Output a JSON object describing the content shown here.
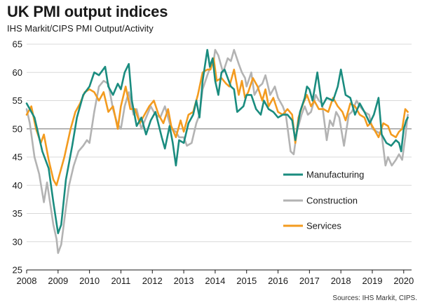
{
  "header": {
    "title": "UK PMI output indices",
    "subtitle": "IHS Markit/CIPS PMI Output/Activity"
  },
  "footer": {
    "source": "Sources: IHS Markit, CIPS."
  },
  "colors": {
    "manufacturing": "#1a8c7f",
    "construction": "#b3b3b3",
    "services": "#f39b1f",
    "reference": "#8c8c8c",
    "grid": "#d9d9d9"
  },
  "chart_data": {
    "type": "line",
    "title": "UK PMI output indices",
    "subtitle": "IHS Markit/CIPS PMI Output/Activity",
    "xlim": [
      2008.0,
      2020.25
    ],
    "ylim": [
      25,
      65
    ],
    "y_ticks": [
      25,
      30,
      35,
      40,
      45,
      50,
      55,
      60,
      65
    ],
    "x_ticks": [
      2008,
      2009,
      2010,
      2011,
      2012,
      2013,
      2014,
      2015,
      2016,
      2017,
      2018,
      2019,
      2020
    ],
    "x_tick_labels": [
      "2008",
      "2009",
      "2010",
      "2011",
      "2012",
      "2013",
      "2014",
      "2015",
      "2016",
      "2017",
      "2018",
      "2019",
      "2020"
    ],
    "grid": "horizontal",
    "reference_line": 50,
    "legend_position": "right",
    "series": [
      {
        "name": "Manufacturing",
        "points": [
          [
            2008.0,
            54.5
          ],
          [
            2008.25,
            52.0
          ],
          [
            2008.5,
            46.0
          ],
          [
            2008.7,
            43.0
          ],
          [
            2008.85,
            37.0
          ],
          [
            2009.0,
            31.5
          ],
          [
            2009.1,
            33.0
          ],
          [
            2009.25,
            41.0
          ],
          [
            2009.45,
            47.0
          ],
          [
            2009.6,
            52.0
          ],
          [
            2009.8,
            56.0
          ],
          [
            2010.0,
            57.5
          ],
          [
            2010.15,
            60.0
          ],
          [
            2010.3,
            59.5
          ],
          [
            2010.5,
            61.0
          ],
          [
            2010.6,
            57.5
          ],
          [
            2010.75,
            56.0
          ],
          [
            2010.9,
            58.0
          ],
          [
            2011.0,
            57.0
          ],
          [
            2011.12,
            60.0
          ],
          [
            2011.25,
            61.5
          ],
          [
            2011.35,
            55.0
          ],
          [
            2011.5,
            50.5
          ],
          [
            2011.65,
            52.0
          ],
          [
            2011.8,
            49.0
          ],
          [
            2011.95,
            51.5
          ],
          [
            2012.1,
            53.0
          ],
          [
            2012.3,
            48.5
          ],
          [
            2012.4,
            46.5
          ],
          [
            2012.55,
            50.5
          ],
          [
            2012.65,
            47.5
          ],
          [
            2012.75,
            43.5
          ],
          [
            2012.85,
            48.0
          ],
          [
            2013.0,
            47.5
          ],
          [
            2013.15,
            51.0
          ],
          [
            2013.3,
            52.5
          ],
          [
            2013.4,
            55.0
          ],
          [
            2013.5,
            52.0
          ],
          [
            2013.6,
            58.5
          ],
          [
            2013.75,
            64.0
          ],
          [
            2013.83,
            61.0
          ],
          [
            2013.92,
            62.5
          ],
          [
            2014.0,
            58.5
          ],
          [
            2014.1,
            56.0
          ],
          [
            2014.2,
            60.0
          ],
          [
            2014.3,
            60.5
          ],
          [
            2014.5,
            57.5
          ],
          [
            2014.6,
            57.0
          ],
          [
            2014.7,
            53.0
          ],
          [
            2014.8,
            53.5
          ],
          [
            2014.9,
            54.0
          ],
          [
            2015.0,
            56.0
          ],
          [
            2015.15,
            56.0
          ],
          [
            2015.3,
            53.5
          ],
          [
            2015.45,
            52.5
          ],
          [
            2015.55,
            55.0
          ],
          [
            2015.7,
            53.5
          ],
          [
            2015.85,
            53.0
          ],
          [
            2016.0,
            52.0
          ],
          [
            2016.15,
            52.5
          ],
          [
            2016.3,
            52.5
          ],
          [
            2016.45,
            51.5
          ],
          [
            2016.55,
            48.0
          ],
          [
            2016.6,
            49.5
          ],
          [
            2016.7,
            53.0
          ],
          [
            2016.85,
            55.5
          ],
          [
            2016.92,
            57.5
          ],
          [
            2017.0,
            57.0
          ],
          [
            2017.1,
            55.0
          ],
          [
            2017.25,
            60.0
          ],
          [
            2017.4,
            54.0
          ],
          [
            2017.55,
            55.5
          ],
          [
            2017.75,
            55.0
          ],
          [
            2017.9,
            57.5
          ],
          [
            2018.0,
            60.5
          ],
          [
            2018.15,
            56.0
          ],
          [
            2018.3,
            55.5
          ],
          [
            2018.45,
            52.5
          ],
          [
            2018.6,
            54.5
          ],
          [
            2018.75,
            53.0
          ],
          [
            2018.92,
            51.0
          ],
          [
            2019.05,
            52.5
          ],
          [
            2019.2,
            55.5
          ],
          [
            2019.3,
            49.0
          ],
          [
            2019.45,
            47.5
          ],
          [
            2019.6,
            47.0
          ],
          [
            2019.75,
            48.0
          ],
          [
            2019.85,
            47.5
          ],
          [
            2019.92,
            46.0
          ],
          [
            2020.0,
            50.0
          ],
          [
            2020.08,
            51.5
          ],
          [
            2020.13,
            52.0
          ]
        ]
      },
      {
        "name": "Construction",
        "points": [
          [
            2008.0,
            53.5
          ],
          [
            2008.1,
            51.0
          ],
          [
            2008.25,
            45.0
          ],
          [
            2008.4,
            42.0
          ],
          [
            2008.55,
            37.0
          ],
          [
            2008.65,
            40.5
          ],
          [
            2008.85,
            33.0
          ],
          [
            2008.95,
            30.5
          ],
          [
            2009.0,
            28.0
          ],
          [
            2009.1,
            29.5
          ],
          [
            2009.25,
            36.0
          ],
          [
            2009.35,
            40.0
          ],
          [
            2009.5,
            43.5
          ],
          [
            2009.65,
            46.0
          ],
          [
            2009.8,
            47.0
          ],
          [
            2009.92,
            48.0
          ],
          [
            2010.0,
            47.5
          ],
          [
            2010.15,
            53.0
          ],
          [
            2010.3,
            57.5
          ],
          [
            2010.45,
            58.5
          ],
          [
            2010.6,
            58.0
          ],
          [
            2010.75,
            53.5
          ],
          [
            2010.88,
            51.0
          ],
          [
            2011.0,
            50.0
          ],
          [
            2011.12,
            54.0
          ],
          [
            2011.25,
            56.5
          ],
          [
            2011.4,
            52.5
          ],
          [
            2011.5,
            53.5
          ],
          [
            2011.65,
            50.0
          ],
          [
            2011.8,
            52.0
          ],
          [
            2011.95,
            54.0
          ],
          [
            2012.1,
            52.5
          ],
          [
            2012.25,
            52.0
          ],
          [
            2012.4,
            54.0
          ],
          [
            2012.5,
            52.0
          ],
          [
            2012.6,
            50.0
          ],
          [
            2012.75,
            49.5
          ],
          [
            2012.85,
            48.5
          ],
          [
            2013.0,
            48.5
          ],
          [
            2013.1,
            47.0
          ],
          [
            2013.25,
            47.5
          ],
          [
            2013.4,
            51.0
          ],
          [
            2013.5,
            52.5
          ],
          [
            2013.6,
            57.0
          ],
          [
            2013.75,
            59.5
          ],
          [
            2013.85,
            61.0
          ],
          [
            2013.95,
            62.0
          ],
          [
            2014.0,
            64.0
          ],
          [
            2014.1,
            63.0
          ],
          [
            2014.25,
            60.0
          ],
          [
            2014.4,
            62.5
          ],
          [
            2014.5,
            62.0
          ],
          [
            2014.6,
            64.0
          ],
          [
            2014.75,
            61.5
          ],
          [
            2014.85,
            60.0
          ],
          [
            2014.95,
            59.0
          ],
          [
            2015.0,
            57.5
          ],
          [
            2015.15,
            60.0
          ],
          [
            2015.25,
            56.0
          ],
          [
            2015.4,
            57.5
          ],
          [
            2015.5,
            58.0
          ],
          [
            2015.6,
            59.5
          ],
          [
            2015.75,
            56.0
          ],
          [
            2015.9,
            57.5
          ],
          [
            2016.0,
            55.5
          ],
          [
            2016.15,
            54.0
          ],
          [
            2016.25,
            52.5
          ],
          [
            2016.4,
            46.0
          ],
          [
            2016.5,
            45.5
          ],
          [
            2016.6,
            49.5
          ],
          [
            2016.75,
            52.5
          ],
          [
            2016.85,
            54.0
          ],
          [
            2016.95,
            52.5
          ],
          [
            2017.05,
            53.0
          ],
          [
            2017.2,
            56.0
          ],
          [
            2017.3,
            55.0
          ],
          [
            2017.4,
            54.5
          ],
          [
            2017.55,
            48.0
          ],
          [
            2017.65,
            51.5
          ],
          [
            2017.75,
            50.5
          ],
          [
            2017.85,
            53.0
          ],
          [
            2017.95,
            52.0
          ],
          [
            2018.1,
            47.0
          ],
          [
            2018.25,
            52.5
          ],
          [
            2018.35,
            53.0
          ],
          [
            2018.5,
            55.0
          ],
          [
            2018.6,
            54.0
          ],
          [
            2018.75,
            53.0
          ],
          [
            2018.9,
            52.5
          ],
          [
            2019.0,
            50.0
          ],
          [
            2019.15,
            49.5
          ],
          [
            2019.3,
            49.0
          ],
          [
            2019.42,
            43.5
          ],
          [
            2019.5,
            45.0
          ],
          [
            2019.62,
            43.5
          ],
          [
            2019.75,
            44.5
          ],
          [
            2019.85,
            45.5
          ],
          [
            2019.95,
            44.5
          ],
          [
            2020.05,
            48.5
          ],
          [
            2020.13,
            52.5
          ]
        ]
      },
      {
        "name": "Services",
        "points": [
          [
            2008.0,
            52.5
          ],
          [
            2008.15,
            54.0
          ],
          [
            2008.3,
            50.0
          ],
          [
            2008.45,
            47.5
          ],
          [
            2008.55,
            49.0
          ],
          [
            2008.7,
            44.5
          ],
          [
            2008.85,
            41.0
          ],
          [
            2008.95,
            40.0
          ],
          [
            2009.05,
            42.0
          ],
          [
            2009.2,
            45.0
          ],
          [
            2009.4,
            50.0
          ],
          [
            2009.55,
            53.0
          ],
          [
            2009.7,
            54.5
          ],
          [
            2009.85,
            56.5
          ],
          [
            2010.0,
            57.0
          ],
          [
            2010.15,
            56.5
          ],
          [
            2010.3,
            55.0
          ],
          [
            2010.45,
            56.5
          ],
          [
            2010.6,
            53.0
          ],
          [
            2010.75,
            54.0
          ],
          [
            2010.9,
            50.0
          ],
          [
            2011.0,
            54.0
          ],
          [
            2011.15,
            57.5
          ],
          [
            2011.3,
            53.5
          ],
          [
            2011.45,
            53.5
          ],
          [
            2011.6,
            51.0
          ],
          [
            2011.75,
            52.5
          ],
          [
            2011.9,
            54.0
          ],
          [
            2012.05,
            55.0
          ],
          [
            2012.2,
            52.5
          ],
          [
            2012.35,
            51.0
          ],
          [
            2012.5,
            53.5
          ],
          [
            2012.6,
            50.5
          ],
          [
            2012.75,
            48.5
          ],
          [
            2012.9,
            51.5
          ],
          [
            2013.0,
            49.5
          ],
          [
            2013.15,
            52.5
          ],
          [
            2013.3,
            53.0
          ],
          [
            2013.45,
            56.0
          ],
          [
            2013.6,
            60.0
          ],
          [
            2013.75,
            60.5
          ],
          [
            2013.85,
            60.5
          ],
          [
            2013.95,
            62.5
          ],
          [
            2014.05,
            58.5
          ],
          [
            2014.2,
            59.0
          ],
          [
            2014.35,
            58.0
          ],
          [
            2014.45,
            57.5
          ],
          [
            2014.6,
            60.5
          ],
          [
            2014.75,
            56.0
          ],
          [
            2014.85,
            58.5
          ],
          [
            2014.95,
            55.5
          ],
          [
            2015.05,
            56.5
          ],
          [
            2015.2,
            59.0
          ],
          [
            2015.35,
            57.5
          ],
          [
            2015.5,
            55.0
          ],
          [
            2015.6,
            57.0
          ],
          [
            2015.7,
            54.0
          ],
          [
            2015.85,
            55.5
          ],
          [
            2016.0,
            53.0
          ],
          [
            2016.15,
            52.5
          ],
          [
            2016.3,
            53.5
          ],
          [
            2016.45,
            52.5
          ],
          [
            2016.55,
            47.5
          ],
          [
            2016.65,
            52.0
          ],
          [
            2016.8,
            54.5
          ],
          [
            2016.92,
            56.0
          ],
          [
            2017.05,
            54.0
          ],
          [
            2017.15,
            55.0
          ],
          [
            2017.3,
            53.5
          ],
          [
            2017.45,
            53.5
          ],
          [
            2017.6,
            53.0
          ],
          [
            2017.75,
            55.5
          ],
          [
            2017.9,
            54.0
          ],
          [
            2018.05,
            53.0
          ],
          [
            2018.15,
            51.5
          ],
          [
            2018.3,
            54.5
          ],
          [
            2018.45,
            54.0
          ],
          [
            2018.6,
            52.5
          ],
          [
            2018.75,
            52.0
          ],
          [
            2018.85,
            50.5
          ],
          [
            2018.95,
            51.0
          ],
          [
            2019.05,
            50.0
          ],
          [
            2019.2,
            48.5
          ],
          [
            2019.35,
            51.0
          ],
          [
            2019.5,
            50.5
          ],
          [
            2019.6,
            49.0
          ],
          [
            2019.75,
            48.5
          ],
          [
            2019.85,
            49.5
          ],
          [
            2019.95,
            50.0
          ],
          [
            2020.05,
            53.5
          ],
          [
            2020.13,
            53.0
          ]
        ]
      }
    ]
  }
}
